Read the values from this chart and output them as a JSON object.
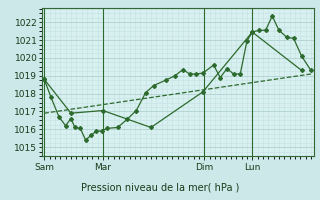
{
  "background_color": "#cce8e8",
  "plot_bg_color": "#d8f0f0",
  "grid_color_major": "#b0d0d0",
  "grid_color_minor": "#c4e0e0",
  "line_color": "#2d6a2d",
  "title": "Pression niveau de la mer( hPa )",
  "ylim": [
    1014.5,
    1022.8
  ],
  "yticks": [
    1015,
    1016,
    1017,
    1018,
    1019,
    1020,
    1021,
    1022
  ],
  "day_labels": [
    "Sam",
    "Mar",
    "Dim",
    "Lun"
  ],
  "day_positions": [
    0.0,
    0.22,
    0.6,
    0.78
  ],
  "xlim": [
    -0.01,
    1.01
  ],
  "series_detailed_x": [
    0.0,
    0.025,
    0.055,
    0.08,
    0.1,
    0.115,
    0.135,
    0.155,
    0.175,
    0.195,
    0.215,
    0.235,
    0.275,
    0.31,
    0.345,
    0.38,
    0.41,
    0.455,
    0.49,
    0.52,
    0.545,
    0.57,
    0.595,
    0.635,
    0.66,
    0.685,
    0.71,
    0.735,
    0.76,
    0.78,
    0.805,
    0.83,
    0.855,
    0.88,
    0.91,
    0.935,
    0.965,
    1.0
  ],
  "series_detailed_y": [
    1018.8,
    1017.8,
    1016.7,
    1016.2,
    1016.6,
    1016.1,
    1016.05,
    1015.4,
    1015.65,
    1015.9,
    1015.9,
    1016.05,
    1016.1,
    1016.55,
    1017.05,
    1018.05,
    1018.45,
    1018.75,
    1019.0,
    1019.35,
    1019.1,
    1019.1,
    1019.15,
    1019.6,
    1018.9,
    1019.4,
    1019.1,
    1019.1,
    1020.95,
    1021.45,
    1021.55,
    1021.55,
    1022.35,
    1021.55,
    1021.15,
    1021.1,
    1020.1,
    1019.3
  ],
  "series_envelope_x": [
    0.0,
    0.1,
    0.22,
    0.4,
    0.595,
    0.78,
    0.965
  ],
  "series_envelope_y": [
    1018.8,
    1016.9,
    1017.05,
    1016.1,
    1018.1,
    1021.45,
    1019.3
  ],
  "series_trend_x": [
    0.0,
    1.0
  ],
  "series_trend_y": [
    1016.9,
    1019.1
  ],
  "vline_positions": [
    0.0,
    0.22,
    0.6,
    0.78
  ]
}
